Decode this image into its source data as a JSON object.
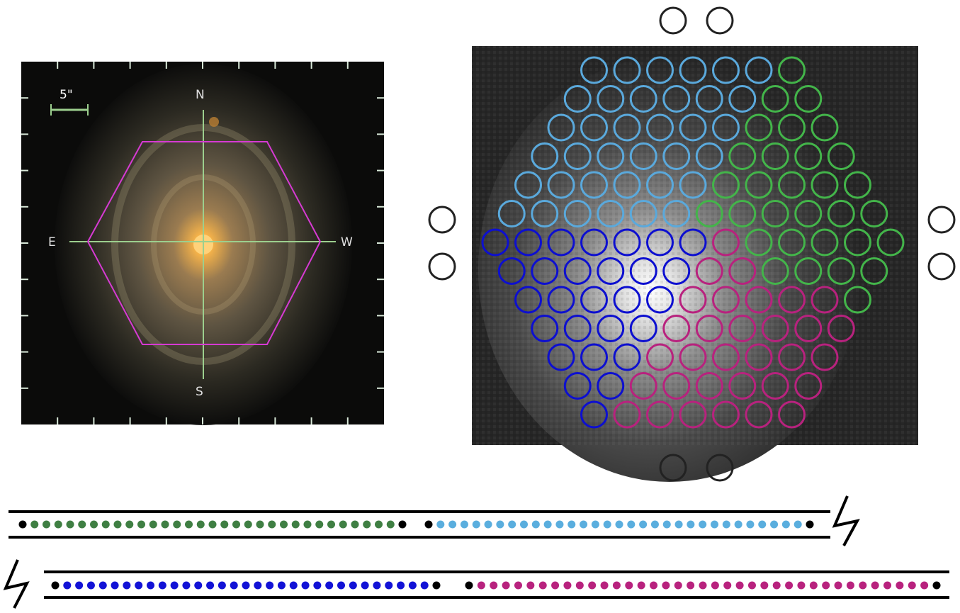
{
  "galaxy_image": {
    "scale_label": "5\"",
    "compass": {
      "north": "N",
      "south": "S",
      "east": "E",
      "west": "W"
    },
    "hexagon_color": "#d63ad3",
    "crosshair_color": "#9ccf8e",
    "frame_tick_color": "#d8e8d8"
  },
  "ifu_map": {
    "colors": {
      "light_blue": "#5aa9dc",
      "green": "#43b54a",
      "blue": "#0d0fd0",
      "magenta": "#b8227e",
      "sky": "#222222"
    },
    "fibers_per_group": 31,
    "sky_fibers": 8
  },
  "slit": {
    "row_1": {
      "groups": [
        {
          "color": "#3f7f43",
          "count": 31
        },
        {
          "color": "#5aaede",
          "count": 31
        }
      ]
    },
    "row_2": {
      "groups": [
        {
          "color": "#1212d6",
          "count": 31
        },
        {
          "color": "#b8227e",
          "count": 37
        }
      ]
    },
    "end_dot_color": "#000000"
  }
}
